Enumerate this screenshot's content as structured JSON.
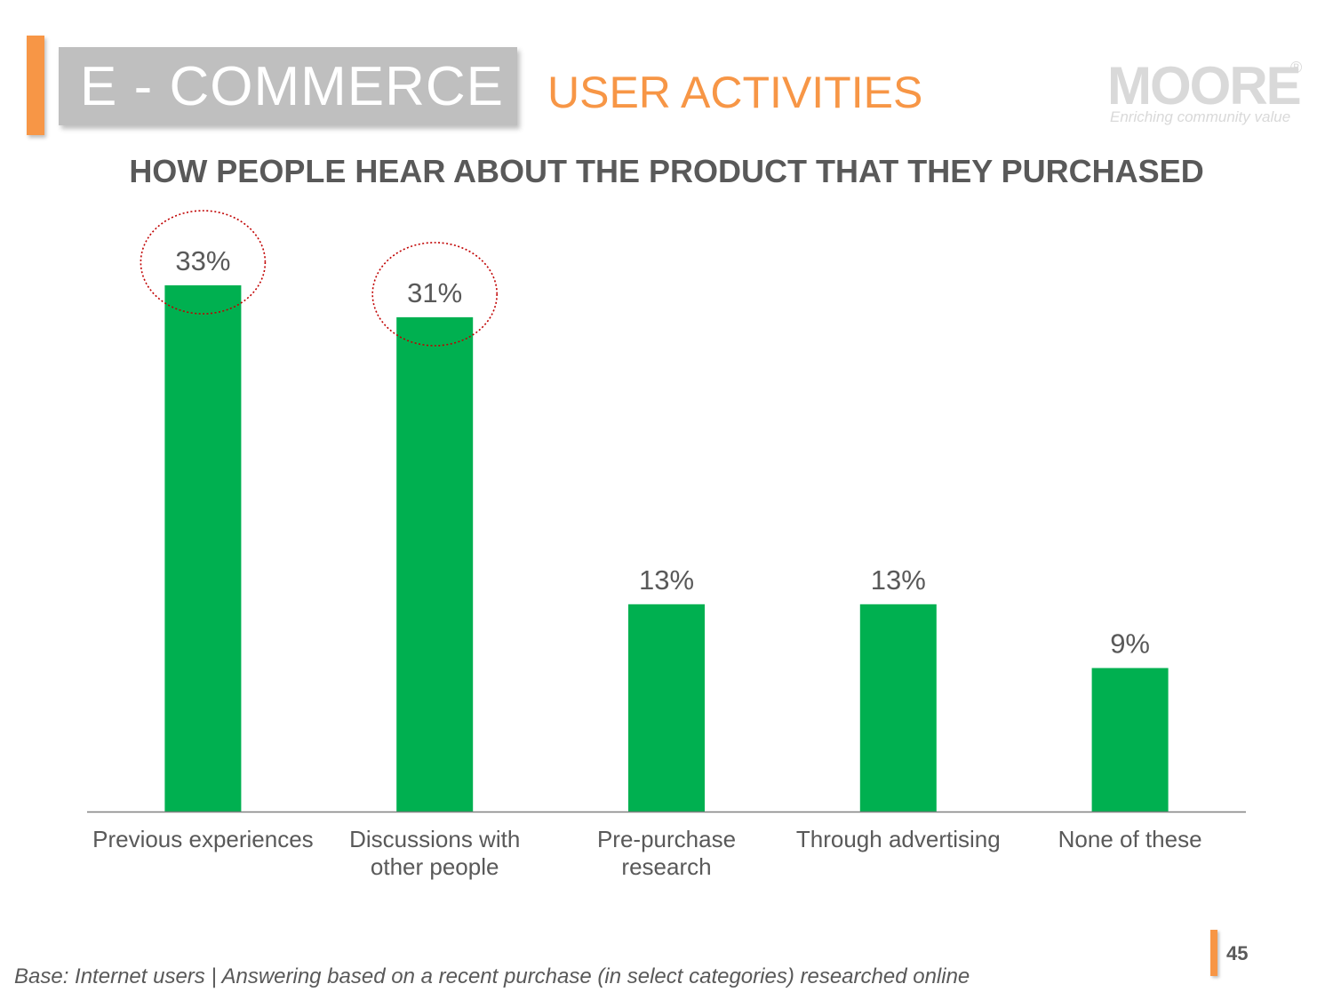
{
  "header": {
    "section": "E - COMMERCE",
    "title": "USER ACTIVITIES"
  },
  "logo": {
    "word": "MOORE",
    "registered": "®",
    "tagline": "Enriching community value"
  },
  "chart_data": {
    "type": "bar",
    "title": "HOW PEOPLE HEAR ABOUT THE PRODUCT THAT THEY PURCHASED",
    "categories": [
      [
        "Previous experiences"
      ],
      [
        "Discussions with",
        "other people"
      ],
      [
        "Pre-purchase",
        "research"
      ],
      [
        "Through advertising"
      ],
      [
        "None of these"
      ]
    ],
    "values": [
      33,
      31,
      13,
      13,
      9
    ],
    "value_labels": [
      "33%",
      "31%",
      "13%",
      "13%",
      "9%"
    ],
    "unit": "%",
    "ylim": [
      0,
      33
    ],
    "grid": false,
    "legend": "none",
    "bar_color": "#00B050",
    "highlighted": [
      0,
      1
    ],
    "highlight_color": "#C00000"
  },
  "footer": {
    "note": "Base: Internet users | Answering based on a recent purchase (in select categories) researched online",
    "page": "45"
  },
  "colors": {
    "accent": "#F79646",
    "text": "#595959",
    "section_box": "#BFBFBF"
  }
}
